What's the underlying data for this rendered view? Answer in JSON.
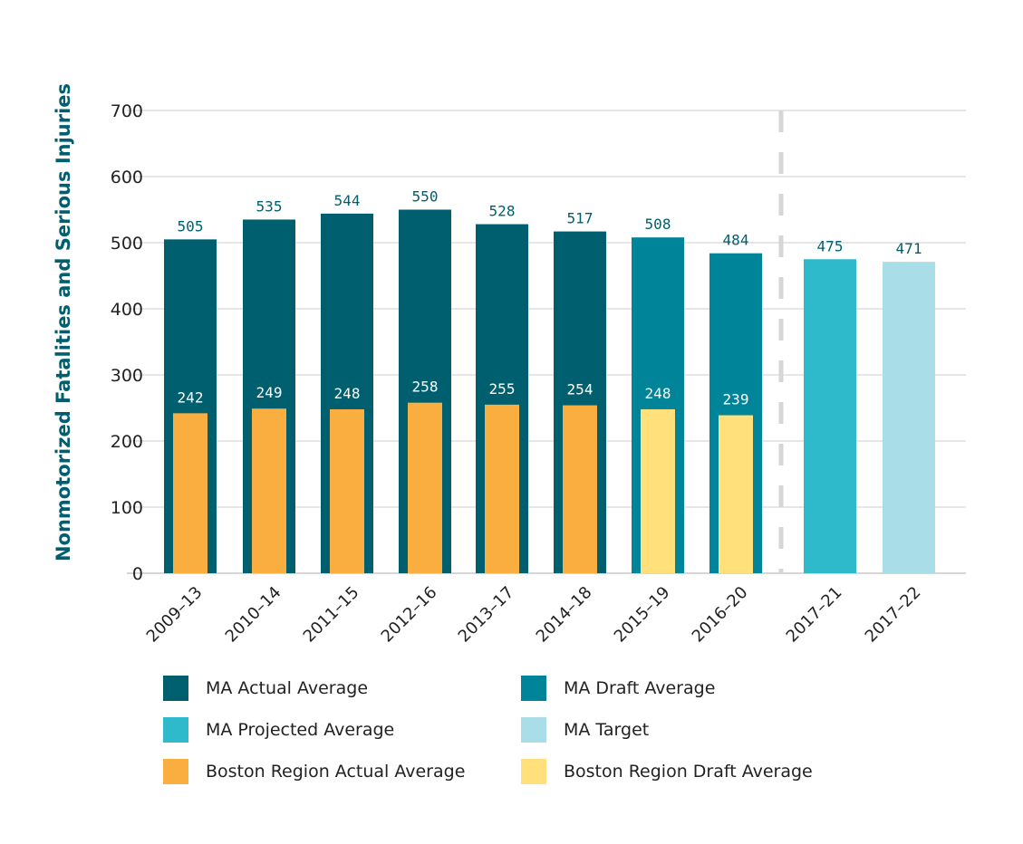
{
  "chart_data": {
    "type": "bar",
    "ylabel": "Nonmotorized Fatalities and Serious Injuries",
    "ylim": [
      0,
      700
    ],
    "yticks": [
      0,
      100,
      200,
      300,
      400,
      500,
      600,
      700
    ],
    "grid": true,
    "legend_position": "bottom",
    "categories": [
      "2009–13",
      "2010–14",
      "2011–15",
      "2012–16",
      "2013–17",
      "2014–18",
      "2015–19",
      "2016–20",
      "2017–21",
      "2017–22"
    ],
    "ma_values": [
      505,
      535,
      544,
      550,
      528,
      517,
      508,
      484,
      475,
      471
    ],
    "ma_types": [
      "actual",
      "actual",
      "actual",
      "actual",
      "actual",
      "actual",
      "draft",
      "draft",
      "projected",
      "target"
    ],
    "boston_values": [
      242,
      249,
      248,
      258,
      255,
      254,
      248,
      239,
      null,
      null
    ],
    "boston_types": [
      "actual",
      "actual",
      "actual",
      "actual",
      "actual",
      "actual",
      "draft",
      "draft",
      null,
      null
    ],
    "divider_after_category": "2016–20",
    "colors": {
      "actual": "#005f6f",
      "draft": "#00849a",
      "projected": "#2fbacc",
      "target": "#a9dde8",
      "boston_actual": "#fbae40",
      "boston_draft": "#ffe07a",
      "grid": "#d6d6d6",
      "label_dark": "#005f6f"
    },
    "legend": [
      {
        "label": "MA Actual Average",
        "color": "#005f6f"
      },
      {
        "label": "MA Draft Average",
        "color": "#00849a"
      },
      {
        "label": "MA Projected Average",
        "color": "#2fbacc"
      },
      {
        "label": "MA Target",
        "color": "#a9dde8"
      },
      {
        "label": "Boston Region Actual Average",
        "color": "#fbae40"
      },
      {
        "label": "Boston Region Draft Average",
        "color": "#ffe07a"
      }
    ]
  }
}
